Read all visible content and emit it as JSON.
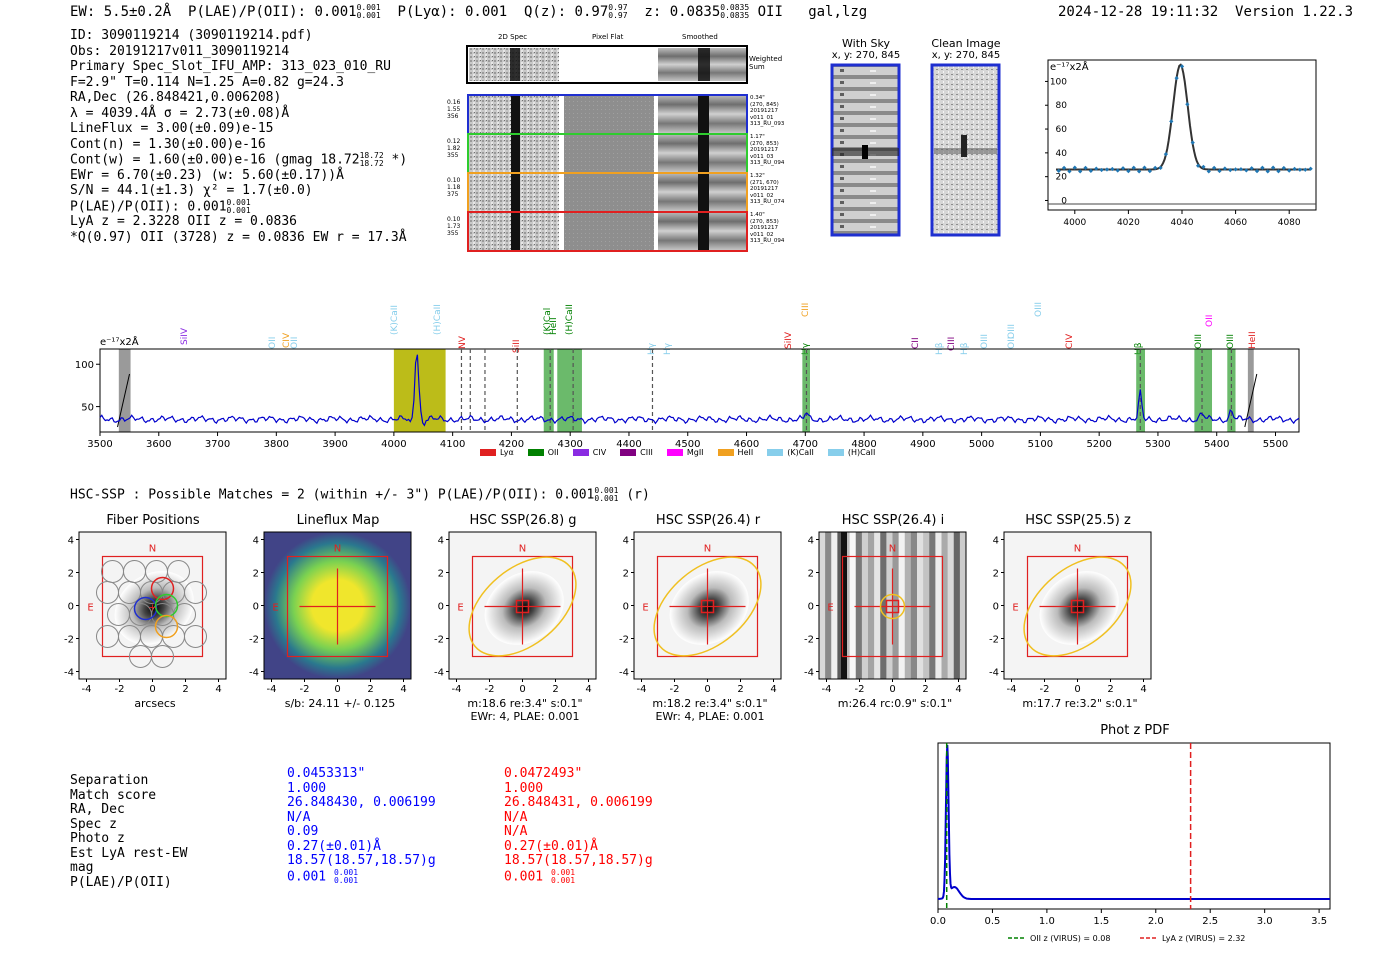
{
  "header": {
    "ew": "EW: 5.5±0.2Å",
    "ew_plae_label": "P(LAE)/P(OII): 0.001",
    "ew_plae_hi": "0.001",
    "ew_plae_lo": "0.001",
    "plya": "P(Lyα): 0.001",
    "qz_label": "Q(z): 0.97",
    "qz_hi": "0.97",
    "qz_lo": "0.97",
    "z_label": "z: 0.0835",
    "z_hi": "0.0835",
    "z_lo": "0.0835",
    "z_line": "OII",
    "flags": "gal,lzg",
    "timestamp": "2024-12-28 19:11:32",
    "version": "Version 1.22.3"
  },
  "info": {
    "id": "ID: 3090119214 (3090119214.pdf)",
    "obs": "Obs: 20191217v011_3090119214",
    "primary": "Primary Spec_Slot_IFU_AMP: 313_023_010_RU",
    "params": "F=2.9\"  T=0.114  N=1.25  A=0.82  g=24.3",
    "radec": "RA,Dec (26.848421,0.006208)",
    "lambda": "λ = 4039.4Å   σ = 2.73(±0.08)Å",
    "lineflux": "LineFlux = 3.00(±0.09)e-15",
    "contn": "Cont(n) = 1.30(±0.00)e-16",
    "contw": "Cont(w) = 1.60(±0.00)e-16 (gmag 18.72",
    "contw_hi": "18.72",
    "contw_lo": "18.72",
    "contw_end": "*)",
    "ewr": "EWr = 6.70(±0.23) (w: 5.60(±0.17))Å",
    "sn": "S/N = 44.1(±1.3)  χ² = 1.7(±0.0)",
    "plae": "P(LAE)/P(OII): 0.001",
    "plae_hi": "0.001",
    "plae_lo": "0.001",
    "lya": "LyA z = 2.3228   OII z = 0.0836",
    "q": "*Q(0.97) OII (3728) z = 0.0836  EW r = 17.3Å"
  },
  "cutouts": {
    "col_titles": [
      "2D Spec",
      "Pixel Flat",
      "Smoothed"
    ],
    "sum_label": "Weighted Sum",
    "rows": [
      {
        "stats": [
          "0.16",
          "1.55",
          "356"
        ],
        "meta": [
          "0.34\"",
          "(270, 845)",
          "20191217",
          "v011_01",
          "313_RU_093"
        ],
        "color": "#1f2fd0"
      },
      {
        "stats": [
          "0.12",
          "1.82",
          "355"
        ],
        "meta": [
          "1.17\"",
          "(270, 853)",
          "20191217",
          "v011_03",
          "313_RU_094"
        ],
        "color": "#2ecc2e"
      },
      {
        "stats": [
          "0.10",
          "1.18",
          "375"
        ],
        "meta": [
          "1.32\"",
          "(271, 670)",
          "20191217",
          "v011_02",
          "313_RU_074"
        ],
        "color": "#f0a020"
      },
      {
        "stats": [
          "0.10",
          "1.73",
          "355"
        ],
        "meta": [
          "1.40\"",
          "(270, 853)",
          "20191217",
          "v011_02",
          "313_RU_094"
        ],
        "color": "#e02020"
      }
    ],
    "with_sky_title": "With Sky",
    "with_sky_coords": "x, y: 270, 845",
    "clean_title": "Clean Image",
    "clean_coords": "x, y: 270, 845"
  },
  "fit_plot": {
    "unit": "e⁻¹⁷x2Å",
    "xticks": [
      "4000",
      "4020",
      "4040",
      "4060",
      "4080"
    ],
    "yticks": [
      "0",
      "20",
      "40",
      "60",
      "80",
      "100"
    ]
  },
  "spectrum": {
    "unit": "e⁻¹⁷x2Å",
    "xticks": [
      "3500",
      "3600",
      "3700",
      "3800",
      "3900",
      "4000",
      "4100",
      "4200",
      "4300",
      "4400",
      "4500",
      "4600",
      "4700",
      "4800",
      "4900",
      "5000",
      "5100",
      "5200",
      "5300",
      "5400",
      "5500"
    ],
    "yticks": [
      "50",
      "100"
    ],
    "line_labels": [
      {
        "t": "SiIV",
        "c": "#8a2be2"
      },
      {
        "t": "OII",
        "c": "#87ceeb"
      },
      {
        "t": "CIV",
        "c": "#f0a020"
      },
      {
        "t": "OII",
        "c": "#87ceeb"
      },
      {
        "t": "(K)CaII",
        "c": "#87ceeb"
      },
      {
        "t": "(H)CaII",
        "c": "#87ceeb"
      },
      {
        "t": "NV",
        "c": "#e02020"
      },
      {
        "t": "SiII",
        "c": "#e02020"
      },
      {
        "t": "(K)Cal",
        "c": "#008000"
      },
      {
        "t": "HeII",
        "c": "#008000"
      },
      {
        "t": "(H)CaII",
        "c": "#008000"
      },
      {
        "t": "Hγ",
        "c": "#87ceeb"
      },
      {
        "t": "Hγ",
        "c": "#87ceeb"
      },
      {
        "t": "SiIV",
        "c": "#e02020"
      },
      {
        "t": "Hγ",
        "c": "#008000"
      },
      {
        "t": "CIII",
        "c": "#f0a020"
      },
      {
        "t": "CII",
        "c": "#800080"
      },
      {
        "t": "Hβ",
        "c": "#87ceeb"
      },
      {
        "t": "CIII",
        "c": "#800080"
      },
      {
        "t": "Hβ",
        "c": "#87ceeb"
      },
      {
        "t": "OIII",
        "c": "#87ceeb"
      },
      {
        "t": "OIII",
        "c": "#87ceeb"
      },
      {
        "t": "OII",
        "c": "#87ceeb"
      },
      {
        "t": "OIII",
        "c": "#87ceeb"
      },
      {
        "t": "CIV",
        "c": "#e02020"
      },
      {
        "t": "Hβ",
        "c": "#008000"
      },
      {
        "t": "OIII",
        "c": "#008000"
      },
      {
        "t": "OII",
        "c": "#ff00ff"
      },
      {
        "t": "OIII",
        "c": "#008000"
      },
      {
        "t": "HeII",
        "c": "#e02020"
      }
    ],
    "legend": [
      {
        "t": "Lyα",
        "c": "#e02020"
      },
      {
        "t": "OII",
        "c": "#008000"
      },
      {
        "t": "CIV",
        "c": "#8a2be2"
      },
      {
        "t": "CIII",
        "c": "#800080"
      },
      {
        "t": "MgII",
        "c": "#ff00ff"
      },
      {
        "t": "HeII",
        "c": "#f0a020"
      },
      {
        "t": "(K)CaII",
        "c": "#87ceeb"
      },
      {
        "t": "(H)CaII",
        "c": "#87ceeb"
      }
    ]
  },
  "hsc": {
    "summary": "HSC-SSP : Possible Matches = 2 (within +/- 3\")  P(LAE)/P(OII): 0.001",
    "summary_hi": "0.001",
    "summary_lo": "0.001",
    "summary_end": "(r)",
    "panels": [
      {
        "title": "Fiber Positions",
        "cap1": "arcsecs",
        "cap2": ""
      },
      {
        "title": "Lineflux Map",
        "cap1": "s/b: 24.11 +/- 0.125",
        "cap2": ""
      },
      {
        "title": "HSC SSP(26.8) g",
        "cap1": "m:18.6  re:3.4\"  s:0.1\"",
        "cap2": "EWr: 4, PLAE: 0.001"
      },
      {
        "title": "HSC SSP(26.4) r",
        "cap1": "m:18.2  re:3.4\"  s:0.1\"",
        "cap2": "EWr: 4, PLAE: 0.001"
      },
      {
        "title": "HSC SSP(26.4) i",
        "cap1": "m:26.4  rc:0.9\"  s:0.1\"",
        "cap2": ""
      },
      {
        "title": "HSC SSP(25.5) z",
        "cap1": "m:17.7  re:3.2\"  s:0.1\"",
        "cap2": ""
      }
    ],
    "axis_ticks": [
      "-4",
      "-2",
      "0",
      "2",
      "4"
    ],
    "n_label": "N",
    "e_label": "E"
  },
  "match_table": {
    "labels": [
      "Separation",
      "Match score",
      "RA, Dec",
      "Spec z",
      "Photo z",
      "Est LyA rest-EW",
      "mag",
      "P(LAE)/P(OII)"
    ],
    "col1": [
      "0.0453313\"",
      "1.000",
      "26.848430, 0.006199",
      "N/A",
      "0.09",
      "0.27(±0.01)Å",
      "18.57(18.57,18.57)g",
      "0.001"
    ],
    "col2": [
      "0.0472493\"",
      "1.000",
      "26.848431, 0.006199",
      "N/A",
      "N/A",
      "0.27(±0.01)Å",
      "18.57(18.57,18.57)g",
      "0.001"
    ],
    "col1_plae_hi": "0.001",
    "col1_plae_lo": "0.001",
    "col2_plae_hi": "0.001",
    "col2_plae_lo": "0.001",
    "col1_color": "#0000ff",
    "col2_color": "#ff0000"
  },
  "photz": {
    "title": "Phot z PDF",
    "xticks": [
      "0.0",
      "0.5",
      "1.0",
      "1.5",
      "2.0",
      "2.5",
      "3.0",
      "3.5"
    ],
    "legend_oii": "OII z (VIRUS) = 0.08",
    "legend_lya": "LyA z (VIRUS) = 2.32"
  }
}
